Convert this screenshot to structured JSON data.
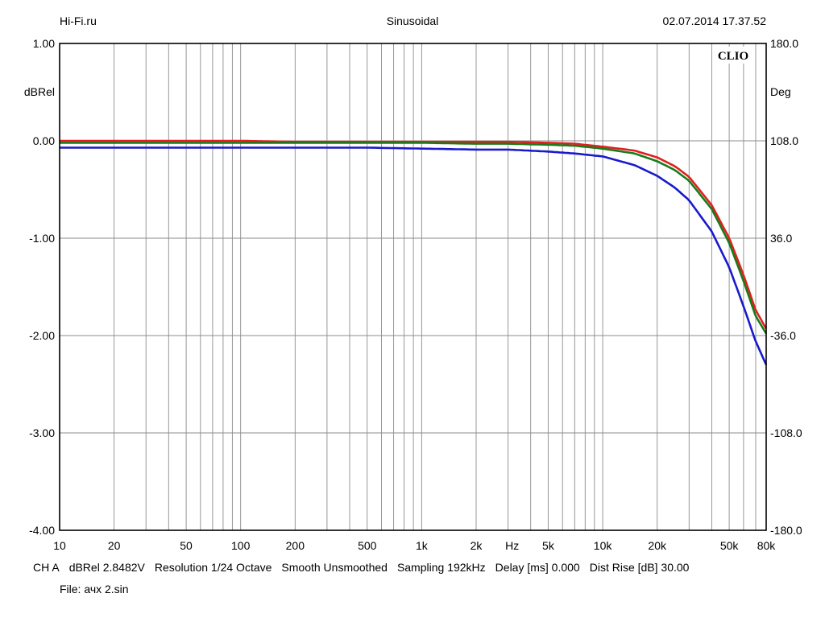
{
  "header": {
    "left": "Hi-Fi.ru",
    "center": "Sinusoidal",
    "right": "02.07.2014 17.37.52"
  },
  "chart_data": {
    "type": "line",
    "title": "Sinusoidal",
    "watermark": "CLIO",
    "x_scale": "log",
    "xlim": [
      10,
      80000
    ],
    "xlabel": "Hz",
    "x_tick_labels": [
      {
        "v": 10,
        "t": "10"
      },
      {
        "v": 20,
        "t": "20"
      },
      {
        "v": 50,
        "t": "50"
      },
      {
        "v": 100,
        "t": "100"
      },
      {
        "v": 200,
        "t": "200"
      },
      {
        "v": 500,
        "t": "500"
      },
      {
        "v": 1000,
        "t": "1k"
      },
      {
        "v": 2000,
        "t": "2k"
      },
      {
        "v": 5000,
        "t": "5k"
      },
      {
        "v": 10000,
        "t": "10k"
      },
      {
        "v": 20000,
        "t": "20k"
      },
      {
        "v": 50000,
        "t": "50k"
      },
      {
        "v": 80000,
        "t": "80k"
      }
    ],
    "x_unit_label": {
      "v": 3162,
      "t": "Hz"
    },
    "ylim": [
      -4.0,
      1.0
    ],
    "ylabel": "dBRel",
    "y_ticks": [
      "1.00",
      "0.00",
      "-1.00",
      "-2.00",
      "-3.00",
      "-4.00"
    ],
    "y2lim": [
      -180.0,
      180.0
    ],
    "y2label": "Deg",
    "y2_ticks": [
      "180.0",
      "108.0",
      "36.0",
      "-36.0",
      "-108.0",
      "-180.0"
    ],
    "grid": true,
    "series": [
      {
        "color": "#e02020",
        "x": [
          10,
          20,
          50,
          100,
          200,
          500,
          1000,
          2000,
          3000,
          5000,
          7000,
          10000,
          15000,
          20000,
          25000,
          30000,
          40000,
          50000,
          60000,
          70000,
          80000
        ],
        "y": [
          0.0,
          0.0,
          0.0,
          0.0,
          -0.01,
          -0.01,
          -0.01,
          -0.01,
          -0.01,
          -0.02,
          -0.03,
          -0.06,
          -0.1,
          -0.17,
          -0.26,
          -0.37,
          -0.66,
          -1.0,
          -1.38,
          -1.74,
          -1.93
        ]
      },
      {
        "color": "#1a7a1a",
        "x": [
          10,
          20,
          50,
          100,
          200,
          500,
          1000,
          2000,
          3000,
          5000,
          7000,
          10000,
          15000,
          20000,
          25000,
          30000,
          40000,
          50000,
          60000,
          70000,
          80000
        ],
        "y": [
          -0.02,
          -0.02,
          -0.02,
          -0.02,
          -0.02,
          -0.02,
          -0.02,
          -0.03,
          -0.03,
          -0.04,
          -0.05,
          -0.08,
          -0.13,
          -0.21,
          -0.3,
          -0.41,
          -0.7,
          -1.05,
          -1.44,
          -1.8,
          -1.98
        ]
      },
      {
        "color": "#1a1acc",
        "x": [
          10,
          20,
          50,
          100,
          200,
          500,
          1000,
          2000,
          3000,
          5000,
          7000,
          10000,
          15000,
          20000,
          25000,
          30000,
          40000,
          50000,
          60000,
          70000,
          80000
        ],
        "y": [
          -0.07,
          -0.07,
          -0.07,
          -0.07,
          -0.07,
          -0.07,
          -0.08,
          -0.09,
          -0.09,
          -0.11,
          -0.13,
          -0.16,
          -0.25,
          -0.36,
          -0.48,
          -0.61,
          -0.93,
          -1.3,
          -1.7,
          -2.06,
          -2.3
        ]
      }
    ]
  },
  "footer": {
    "channel": "CH A",
    "ref": "dBRel 2.8482V",
    "resolution": "Resolution 1/24 Octave",
    "smooth": "Smooth Unsmoothed",
    "sampling": "Sampling 192kHz",
    "delay": "Delay [ms] 0.000",
    "dist": "Dist Rise [dB] 30.00",
    "file": "File: ачх 2.sin"
  }
}
